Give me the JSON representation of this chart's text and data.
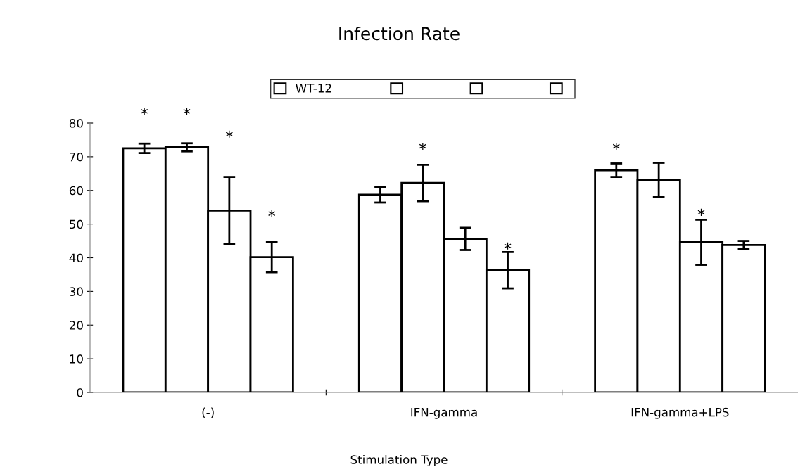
{
  "chart_data": {
    "type": "bar",
    "title": "Infection Rate",
    "xlabel": "Stimulation Type",
    "categories": [
      "(-)",
      "IFN-gamma",
      "IFN-gamma+LPS"
    ],
    "series": [
      {
        "name": "WT-12",
        "color": "#ffffff",
        "values": [
          72.5,
          58.7,
          66.0
        ],
        "errors": [
          1.4,
          2.3,
          2.0
        ]
      },
      {
        "color": "#ffffff",
        "values": [
          72.8,
          62.2,
          63.1
        ],
        "errors": [
          1.2,
          5.4,
          5.1
        ]
      },
      {
        "color": "#ffffff",
        "values": [
          54.0,
          45.6,
          44.6
        ],
        "errors": [
          10.0,
          3.3,
          6.7
        ]
      },
      {
        "color": "#ffffff",
        "values": [
          40.2,
          36.3,
          43.8
        ],
        "errors": [
          4.5,
          5.4,
          1.2
        ]
      }
    ],
    "ylim": [
      0,
      80
    ],
    "yticks": [
      0,
      10,
      20,
      30,
      40,
      50,
      60,
      70,
      80
    ],
    "grid": false,
    "legend": "top",
    "annotations": [
      "*",
      "*",
      "*",
      "*",
      "*",
      "*",
      "*",
      "*"
    ]
  }
}
